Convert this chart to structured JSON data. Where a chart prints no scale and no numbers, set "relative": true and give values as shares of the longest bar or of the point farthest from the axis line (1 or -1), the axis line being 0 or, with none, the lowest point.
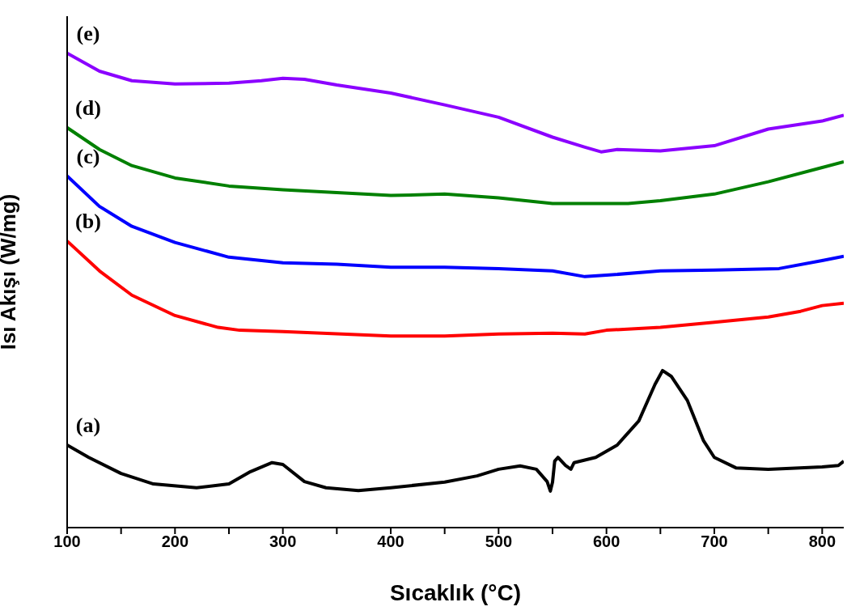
{
  "chart_data": {
    "type": "line",
    "relative": true,
    "xlabel": "Sıcaklık (°C)",
    "ylabel": "Isı Akışı (W/mg)",
    "xlim": [
      100,
      820
    ],
    "xticks": [
      100,
      {
        "value": 150,
        "label": null
      },
      200,
      {
        "value": 250,
        "label": null
      },
      300,
      {
        "value": 350,
        "label": null
      },
      400,
      {
        "value": 450,
        "label": null
      },
      500,
      {
        "value": 550,
        "label": null
      },
      600,
      {
        "value": 650,
        "label": null
      },
      700,
      {
        "value": 750,
        "label": null
      },
      800
    ],
    "grid": false,
    "legend": false,
    "marker": "none",
    "line_style": "solid",
    "series": [
      {
        "name": "(a)",
        "color": "#000000",
        "x": [
          100,
          120,
          150,
          180,
          220,
          250,
          270,
          290,
          300,
          320,
          340,
          370,
          400,
          450,
          480,
          500,
          520,
          535,
          545,
          548,
          550,
          552,
          555,
          562,
          567,
          570,
          590,
          610,
          630,
          645,
          652,
          660,
          675,
          690,
          700,
          720,
          750,
          800,
          815,
          820
        ],
        "values": [
          0.174,
          0.148,
          0.114,
          0.092,
          0.084,
          0.092,
          0.118,
          0.137,
          0.133,
          0.097,
          0.084,
          0.078,
          0.084,
          0.096,
          0.109,
          0.123,
          0.13,
          0.123,
          0.097,
          0.077,
          0.096,
          0.14,
          0.148,
          0.131,
          0.123,
          0.137,
          0.148,
          0.174,
          0.225,
          0.302,
          0.331,
          0.319,
          0.268,
          0.183,
          0.148,
          0.126,
          0.123,
          0.128,
          0.131,
          0.14
        ]
      },
      {
        "name": "(b)",
        "color": "#ff0000",
        "x": [
          100,
          130,
          160,
          200,
          240,
          260,
          300,
          400,
          450,
          500,
          550,
          580,
          600,
          650,
          700,
          750,
          780,
          800,
          820
        ],
        "values": [
          0.604,
          0.541,
          0.49,
          0.447,
          0.422,
          0.416,
          0.413,
          0.404,
          0.404,
          0.408,
          0.41,
          0.408,
          0.416,
          0.422,
          0.433,
          0.444,
          0.456,
          0.468,
          0.473
        ]
      },
      {
        "name": "(c)",
        "color": "#0000ff",
        "x": [
          100,
          130,
          160,
          200,
          250,
          300,
          350,
          400,
          450,
          500,
          550,
          580,
          600,
          650,
          700,
          760,
          800,
          820
        ],
        "values": [
          0.741,
          0.677,
          0.635,
          0.601,
          0.57,
          0.558,
          0.555,
          0.549,
          0.549,
          0.546,
          0.541,
          0.529,
          0.532,
          0.541,
          0.543,
          0.546,
          0.563,
          0.572
        ]
      },
      {
        "name": "(d)",
        "color": "#008000",
        "x": [
          100,
          130,
          160,
          200,
          250,
          300,
          350,
          400,
          450,
          500,
          550,
          580,
          620,
          650,
          700,
          750,
          800,
          820
        ],
        "values": [
          0.843,
          0.797,
          0.763,
          0.737,
          0.72,
          0.712,
          0.706,
          0.7,
          0.703,
          0.695,
          0.683,
          0.683,
          0.683,
          0.689,
          0.703,
          0.729,
          0.759,
          0.771
        ]
      },
      {
        "name": "(e)",
        "color": "#8b00ff",
        "x": [
          100,
          130,
          160,
          200,
          250,
          280,
          300,
          320,
          350,
          400,
          450,
          500,
          550,
          580,
          595,
          610,
          650,
          700,
          750,
          800,
          820
        ],
        "values": [
          1,
          0.962,
          0.942,
          0.935,
          0.937,
          0.942,
          0.947,
          0.945,
          0.933,
          0.916,
          0.891,
          0.865,
          0.823,
          0.802,
          0.792,
          0.797,
          0.794,
          0.805,
          0.84,
          0.857,
          0.869
        ]
      }
    ]
  }
}
